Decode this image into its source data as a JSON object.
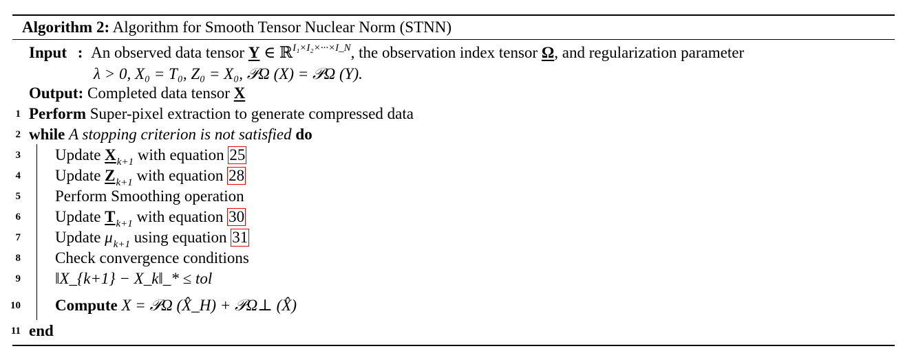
{
  "algorithm": {
    "label": "Algorithm 2:",
    "title": "Algorithm for Smooth Tensor Nuclear Norm (STNN)"
  },
  "input": {
    "key": "Input",
    "colon": ":",
    "text_line1_a": "An observed data tensor",
    "symbol_Y": "Y",
    "in_R": "∈ ℝ",
    "dims": "I₁×I₂×···×I_N",
    "text_line1_b": ", the observation index tensor",
    "symbol_Omega": "Ω",
    "text_line1_c": ", and regularization parameter",
    "line2": "λ > 0, X₀ = T₀, Z₀ = X₀, 𝒫Ω (X) = 𝒫Ω (Y)."
  },
  "output": {
    "key": "Output:",
    "text": "Completed data tensor",
    "symbol": "X"
  },
  "steps": [
    {
      "num": "1",
      "keyword": "Perform",
      "text": "Super-pixel extraction to generate compressed data"
    },
    {
      "num": "2",
      "keyword": "while",
      "condition": "A stopping criterion is not satisfied",
      "keyword2": "do"
    },
    {
      "num": "3",
      "prefix": "Update",
      "var": "X",
      "sub": "k+1",
      "suffix": "with equation",
      "ref": "25"
    },
    {
      "num": "4",
      "prefix": "Update",
      "var": "Z",
      "sub": "k+1",
      "suffix": "with equation",
      "ref": "28"
    },
    {
      "num": "5",
      "text": "Perform Smoothing operation"
    },
    {
      "num": "6",
      "prefix": "Update",
      "var": "T",
      "sub": "k+1",
      "suffix": "with equation",
      "ref": "30"
    },
    {
      "num": "7",
      "prefix": "Update",
      "var": "μ",
      "sub": "k+1",
      "suffix": "using equation",
      "ref": "31"
    },
    {
      "num": "8",
      "text": "Check convergence conditions"
    },
    {
      "num": "9",
      "formula": "‖X_{k+1} − X_k‖_* ≤ tol"
    },
    {
      "num": "10",
      "keyword": "Compute",
      "formula": "X = 𝒫Ω (X̂_H) + 𝒫Ω⊥ (X̂)"
    },
    {
      "num": "11",
      "keyword": "end"
    }
  ]
}
